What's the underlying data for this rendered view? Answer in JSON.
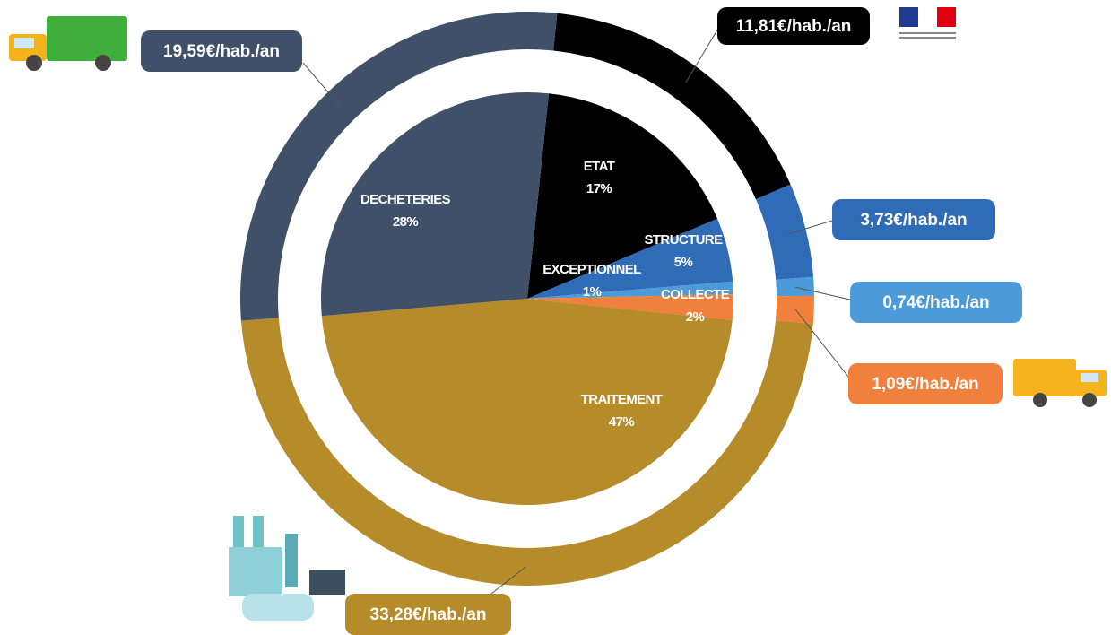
{
  "chart_data": [
    {
      "type": "pie",
      "categories": [
        "ETAT",
        "STRUCTURE",
        "EXCEPTIONNEL",
        "COLLECTE",
        "TRAITEMENT",
        "DECHETERIES"
      ],
      "values": [
        17,
        5,
        1,
        2,
        47,
        28
      ],
      "value_labels": [
        "17%",
        "5%",
        "1%",
        "2%",
        "47%",
        "28%"
      ],
      "colors": [
        "#000000",
        "#2f6bb7",
        "#4c9bd8",
        "#f0803c",
        "#b68b29",
        "#3f5068"
      ]
    },
    {
      "type": "donut",
      "values": [
        11.81,
        3.73,
        0.74,
        1.09,
        33.28,
        19.59
      ],
      "value_labels": [
        "11,81€/hab./an",
        "3,73€/hab./an",
        "0,74€/hab./an",
        "1,09€/hab./an",
        "33,28€/hab./an",
        "19,59€/hab./an"
      ],
      "colors": [
        "#000000",
        "#2f6bb7",
        "#4c9bd8",
        "#f0803c",
        "#b68b29",
        "#3f5068"
      ]
    }
  ]
}
